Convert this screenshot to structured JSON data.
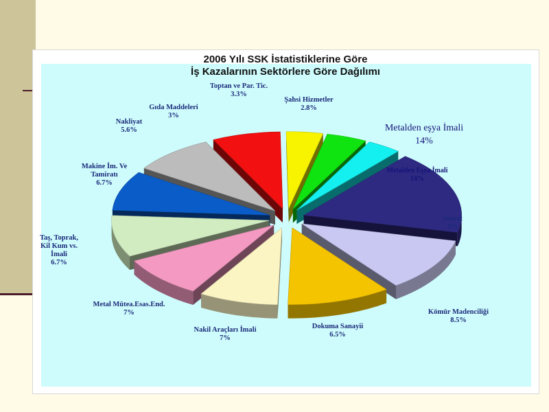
{
  "slide": {
    "callout": {
      "name": "Metalden eşya İmali",
      "value": "14%"
    }
  },
  "chart_data": {
    "type": "pie",
    "title": [
      "2006 Yılı SSK İstatistiklerine Göre",
      "İş Kazalarının Sektörlere Göre Dağılımı"
    ],
    "slices": [
      {
        "label": [
          "Metalden Eşya İmali"
        ],
        "value_label": "14%",
        "value": 14,
        "color": "#2e2a82"
      },
      {
        "label": [
          "İnşaat"
        ],
        "value_label": "9%",
        "value": 9,
        "color": "#c8c8f2"
      },
      {
        "label": [
          "Kömür Madenciliği"
        ],
        "value_label": "8.5%",
        "value": 8.5,
        "color": "#f5c400"
      },
      {
        "label": [
          "Dokuma Sanayii"
        ],
        "value_label": "6.5%",
        "value": 6.5,
        "color": "#fbf5c4"
      },
      {
        "label": [
          "Nakil Araçları İmali"
        ],
        "value_label": "7%",
        "value": 7,
        "color": "#f49ac2"
      },
      {
        "label": [
          "Metal Mütea.Esas.End."
        ],
        "value_label": "7%",
        "value": 7,
        "color": "#d0ecc0"
      },
      {
        "label": [
          "Taş, Toprak,",
          "Kil Kum vs.",
          "İmali"
        ],
        "value_label": "6.7%",
        "value": 6.7,
        "color": "#0a5cc8"
      },
      {
        "label": [
          "Makine İm. Ve",
          "Tamiratı"
        ],
        "value_label": "6.7%",
        "value": 6.7,
        "color": "#bcbcbc"
      },
      {
        "label": [
          "Nakliyat"
        ],
        "value_label": "5.6%",
        "value": 5.6,
        "color": "#f21010"
      },
      {
        "label": [
          "Gıda Maddeleri"
        ],
        "value_label": "3%",
        "value": 3,
        "color": "#f8f400"
      },
      {
        "label": [
          "Toptan ve Par. Tic."
        ],
        "value_label": "3.3%",
        "value": 3.3,
        "color": "#10e410"
      },
      {
        "label": [
          "Şahsi Hizmetler"
        ],
        "value_label": "2.8%",
        "value": 2.8,
        "color": "#14f0f0"
      }
    ],
    "legend": "none"
  }
}
